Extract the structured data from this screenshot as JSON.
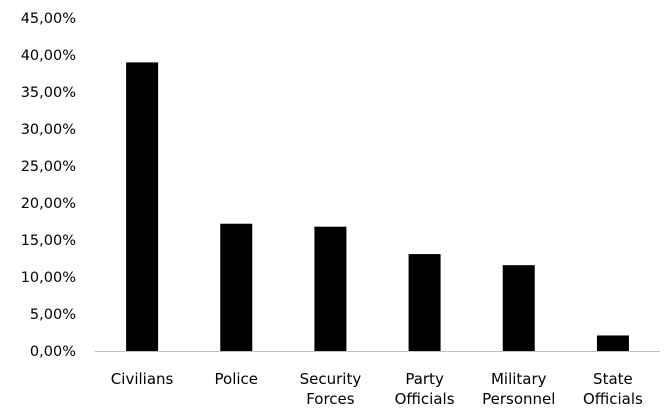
{
  "chart_data": {
    "type": "bar",
    "title": "",
    "xlabel": "",
    "ylabel": "",
    "categories": [
      [
        "Civilians"
      ],
      [
        "Police"
      ],
      [
        "Security",
        "Forces"
      ],
      [
        "Party",
        "Officials"
      ],
      [
        "Military",
        "Personnel"
      ],
      [
        "State",
        "Officials"
      ]
    ],
    "values": [
      39.0,
      17.2,
      16.8,
      13.1,
      11.6,
      2.1
    ],
    "ylim": [
      0,
      45
    ],
    "ytick_step": 5,
    "ytick_labels": [
      "0,00%",
      "5,00%",
      "10,00%",
      "15,00%",
      "20,00%",
      "25,00%",
      "30,00%",
      "35,00%",
      "40,00%",
      "45,00%"
    ],
    "grid": false,
    "legend": "none",
    "colors": {
      "bar": "#000000",
      "axis": "#bfbfbf"
    }
  }
}
